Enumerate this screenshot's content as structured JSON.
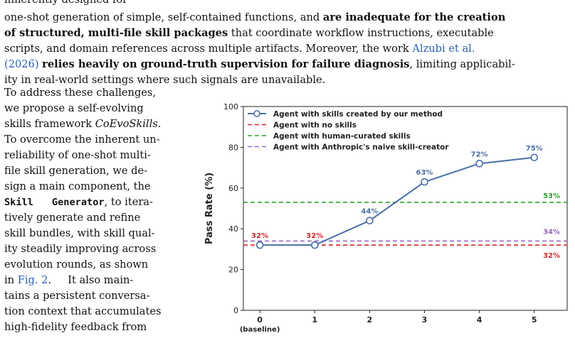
{
  "text": {
    "top_cut": "inherently designed for",
    "p1_l1a": "one-shot generation of simple, self-contained functions, and ",
    "p1_l1b": "are inadequate for the creation",
    "p1_l2": "of structured, multi-file skill packages",
    "p1_l2b": " that coordinate workflow instructions, executable",
    "p1_l3a": "scripts, and domain references across multiple artifacts. Moreover, the work ",
    "p1_l3b": "Alzubi et al.",
    "p1_l4a": "(2026)",
    "p1_l4b": " ",
    "p1_l4c": "relies heavily on ground-truth supervision for failure diagnosis",
    "p1_l4d": ", limiting applicabil-",
    "p1_l5": "ity in real-world settings where such signals are unavailable.",
    "l1": "To address these challenges,",
    "l2": "we propose a self-evolving",
    "l3a": "skills framework ",
    "l3b": "CoEvoSkills",
    "l3c": ".",
    "l4": "To overcome the inherent un-",
    "l5": "reliability of one-shot multi-",
    "l6": "file skill generation, we de-",
    "l7a": "sign a main component, the",
    "l8a": "Skill",
    "l8b": "Generator",
    "l8c": ", to itera-",
    "l9": "tively generate and refine",
    "l10": "skill bundles, with skill qual-",
    "l11": "ity steadily improving across",
    "l12": "evolution rounds, as shown",
    "l13a": "in ",
    "l13b": "Fig. 2",
    "l13c": ".     It also main-",
    "l14": "tains a persistent conversa-",
    "l15": "tion context that accumulates",
    "l16": "high-fidelity feedback from"
  },
  "colors": {
    "blue": "#4a6fa5",
    "red": "#d62728",
    "green": "#2ca02c",
    "purple": "#9467bd",
    "link": "#2a5db0"
  },
  "chart_data": {
    "type": "line",
    "xlabel": "Evolution Iteration",
    "ylabel": "Pass Rate (%)",
    "ylim": [
      0,
      100
    ],
    "xlim": [
      -0.3,
      5.6
    ],
    "x": [
      0,
      1,
      2,
      3,
      4,
      5
    ],
    "x_tick_labels": [
      "0",
      "1",
      "2",
      "3",
      "4",
      "5"
    ],
    "x_tick_sublabels": [
      "(baseline)",
      "",
      "",
      "",
      "",
      ""
    ],
    "y_ticks": [
      0,
      20,
      40,
      60,
      80,
      100
    ],
    "grid": false,
    "legend_position": "top-left",
    "series": [
      {
        "name": "Agent with skills created by our method",
        "values": [
          32,
          32,
          44,
          63,
          72,
          75
        ],
        "labels": [
          "32%",
          "32%",
          "44%",
          "63%",
          "72%",
          "75%"
        ],
        "label_colors": [
          "red",
          "red",
          "blue",
          "blue",
          "blue",
          "blue"
        ]
      }
    ],
    "reference_lines": [
      {
        "name": "Agent with no skills",
        "value": 32,
        "label": "32%",
        "color": "red"
      },
      {
        "name": "Agent with human-curated skills",
        "value": 53,
        "label": "53%",
        "color": "green"
      },
      {
        "name": "Agent with Anthropic's naive skill-creator",
        "value": 34,
        "label": "34%",
        "color": "purple"
      }
    ]
  }
}
